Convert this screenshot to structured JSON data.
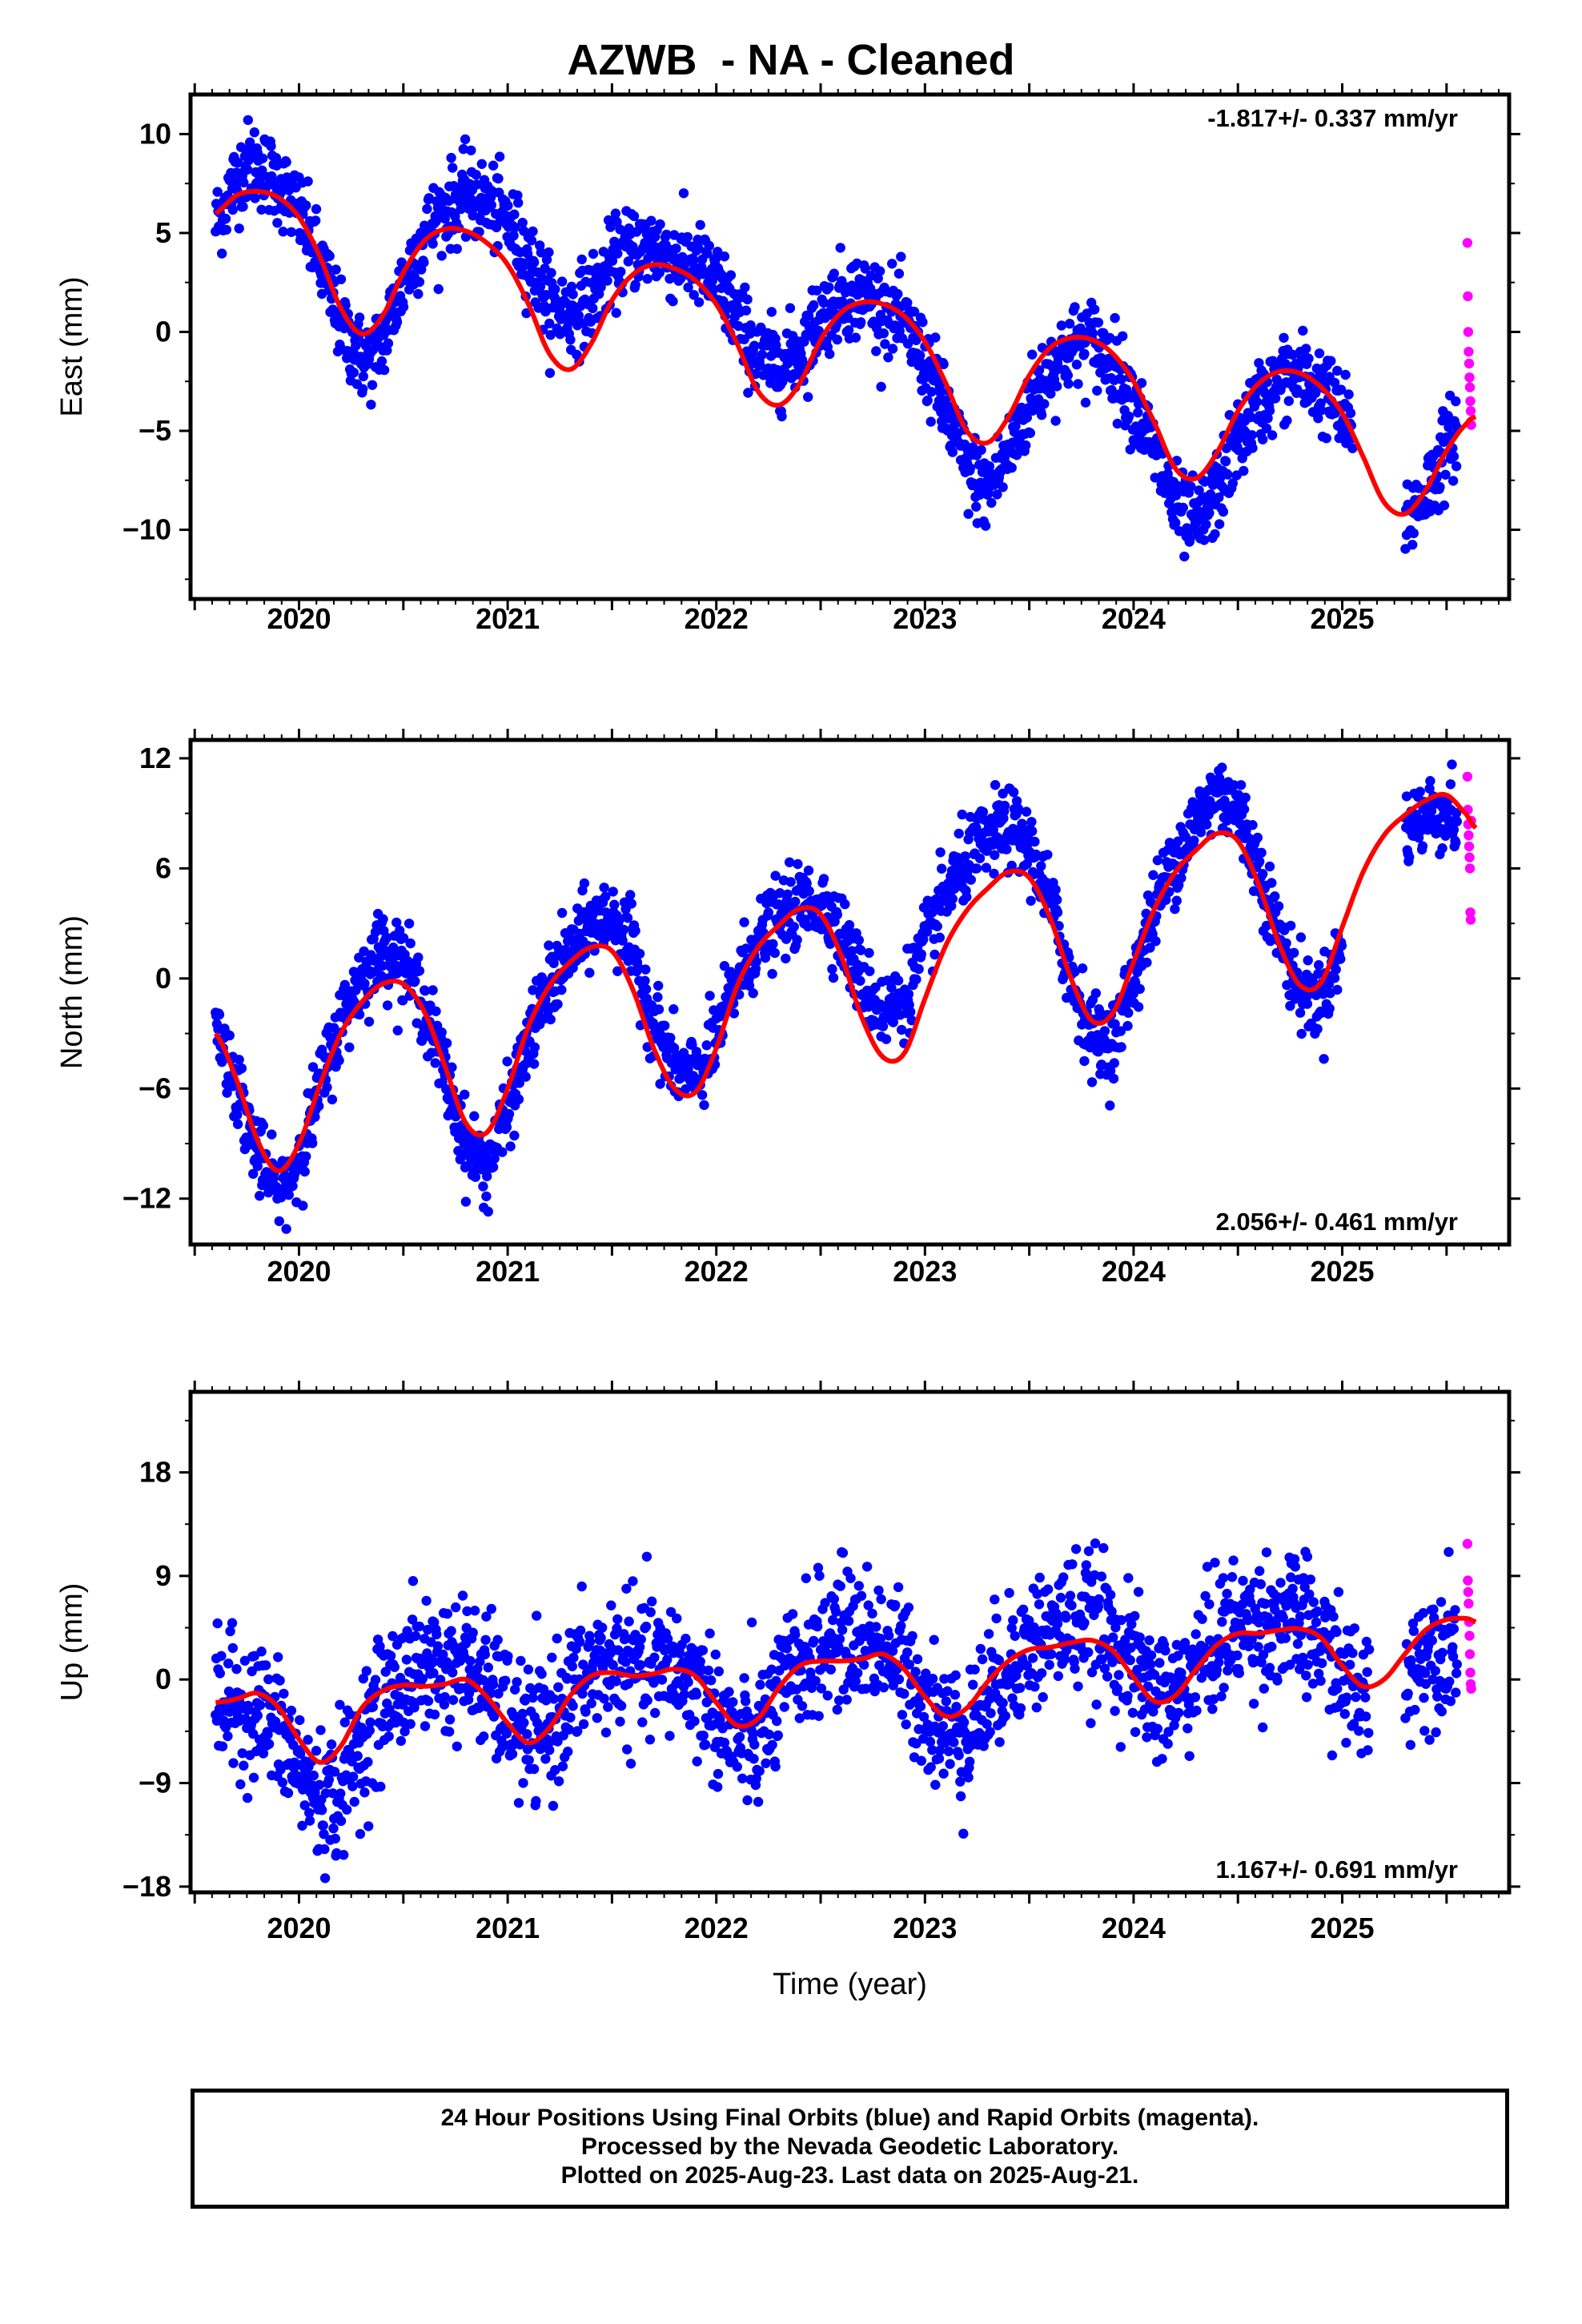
{
  "title": "AZWB  - NA - Cleaned",
  "colors": {
    "final": "#0000ff",
    "rapid": "#ff00ff",
    "model": "#ff0000",
    "frame": "#000000"
  },
  "footer": {
    "line1": "24 Hour Positions Using Final Orbits (blue) and Rapid Orbits (magenta).",
    "line2": "Processed by the Nevada Geodetic Laboratory.",
    "line3": "Plotted on 2025-Aug-23. Last data on 2025-Aug-21."
  },
  "chart_data": [
    {
      "type": "scatter",
      "component": "east",
      "ylabel": "East (mm)",
      "xlabel": "",
      "rate_label": "-1.817+/- 0.337 mm/yr",
      "rate_position": "top-right",
      "xlim": [
        2019.48,
        2025.8
      ],
      "ylim": [
        -13.5,
        12.0
      ],
      "yticks": [
        -10,
        -5,
        0,
        5,
        10
      ],
      "ytick_labels": [
        "−10",
        "−5",
        "0",
        "5",
        "10"
      ],
      "xticks": [
        2020,
        2021,
        2022,
        2023,
        2024,
        2025
      ],
      "xtick_labels": [
        "2020",
        "2021",
        "2022",
        "2023",
        "2024",
        "2025"
      ],
      "model_curve": {
        "x": [
          2019.6,
          2019.7,
          2019.8,
          2019.9,
          2020.0,
          2020.1,
          2020.2,
          2020.3,
          2020.4,
          2020.5,
          2020.6,
          2020.7,
          2020.8,
          2020.9,
          2021.0,
          2021.1,
          2021.2,
          2021.3,
          2021.4,
          2021.5,
          2021.6,
          2021.7,
          2021.8,
          2021.9,
          2022.0,
          2022.1,
          2022.2,
          2022.3,
          2022.4,
          2022.5,
          2022.6,
          2022.7,
          2022.8,
          2022.9,
          2023.0,
          2023.1,
          2023.2,
          2023.3,
          2023.4,
          2023.5,
          2023.6,
          2023.7,
          2023.8,
          2023.9,
          2024.0,
          2024.1,
          2024.2,
          2024.3,
          2024.4,
          2024.5,
          2024.6,
          2024.7,
          2024.8,
          2024.9,
          2025.0,
          2025.1,
          2025.2,
          2025.3,
          2025.4,
          2025.5,
          2025.6,
          2025.64
        ],
        "y": [
          6.0,
          6.9,
          7.1,
          6.8,
          5.8,
          3.8,
          1.2,
          -0.1,
          0.8,
          3.0,
          4.6,
          5.2,
          5.1,
          4.5,
          3.4,
          1.4,
          -1.1,
          -1.9,
          -0.6,
          1.6,
          2.9,
          3.4,
          3.2,
          2.6,
          1.4,
          -0.6,
          -3.0,
          -3.7,
          -2.6,
          -0.4,
          1.0,
          1.5,
          1.4,
          0.8,
          -0.5,
          -2.6,
          -5.0,
          -5.6,
          -4.3,
          -2.2,
          -0.8,
          -0.3,
          -0.4,
          -1.1,
          -2.5,
          -4.6,
          -6.9,
          -7.4,
          -6.1,
          -4.0,
          -2.6,
          -2.0,
          -2.1,
          -2.8,
          -4.1,
          -6.3,
          -8.6,
          -9.2,
          -8.0,
          -6.0,
          -4.6,
          -4.3
        ]
      },
      "final_points": {
        "x": [
          2019.6,
          2025.55
        ],
        "y": [
          5.2,
          -7.0
        ],
        "count": 1950
      },
      "rapid_points": {
        "x": [
          2025.6,
          2025.602,
          2025.604,
          2025.606,
          2025.608,
          2025.61,
          2025.612,
          2025.614,
          2025.616,
          2025.618
        ],
        "y": [
          4.5,
          1.8,
          0.0,
          -1.0,
          -1.6,
          -2.3,
          -2.8,
          -3.5,
          -4.0,
          -4.7
        ]
      }
    },
    {
      "type": "scatter",
      "component": "north",
      "ylabel": "North (mm)",
      "xlabel": "",
      "rate_label": "2.056+/- 0.461 mm/yr",
      "rate_position": "bottom-right",
      "xlim": [
        2019.48,
        2025.8
      ],
      "ylim": [
        -14.5,
        13.0
      ],
      "yticks": [
        -12,
        -6,
        0,
        6,
        12
      ],
      "ytick_labels": [
        "−12",
        "−6",
        "0",
        "6",
        "12"
      ],
      "xticks": [
        2020,
        2021,
        2022,
        2023,
        2024,
        2025
      ],
      "xtick_labels": [
        "2020",
        "2021",
        "2022",
        "2023",
        "2024",
        "2025"
      ],
      "model_curve": {
        "x": [
          2019.6,
          2019.7,
          2019.8,
          2019.9,
          2020.0,
          2020.1,
          2020.2,
          2020.3,
          2020.4,
          2020.5,
          2020.6,
          2020.7,
          2020.8,
          2020.9,
          2021.0,
          2021.1,
          2021.2,
          2021.3,
          2021.4,
          2021.5,
          2021.6,
          2021.7,
          2021.8,
          2021.9,
          2022.0,
          2022.1,
          2022.2,
          2022.3,
          2022.4,
          2022.5,
          2022.6,
          2022.7,
          2022.8,
          2022.9,
          2023.0,
          2023.1,
          2023.2,
          2023.3,
          2023.4,
          2023.5,
          2023.6,
          2023.7,
          2023.8,
          2023.9,
          2024.0,
          2024.1,
          2024.2,
          2024.3,
          2024.4,
          2024.5,
          2024.6,
          2024.7,
          2024.8,
          2024.9,
          2025.0,
          2025.1,
          2025.2,
          2025.3,
          2025.4,
          2025.5,
          2025.6,
          2025.64
        ],
        "y": [
          -3.0,
          -5.5,
          -8.8,
          -10.5,
          -9.0,
          -5.8,
          -3.0,
          -1.3,
          -0.3,
          -0.3,
          -1.8,
          -4.8,
          -7.9,
          -8.4,
          -6.0,
          -2.6,
          -0.4,
          0.9,
          1.7,
          1.5,
          -0.6,
          -3.8,
          -6.0,
          -6.2,
          -3.8,
          -0.4,
          1.7,
          2.9,
          3.8,
          3.5,
          1.2,
          -2.2,
          -4.3,
          -4.1,
          -1.1,
          1.8,
          3.7,
          4.9,
          5.8,
          5.5,
          3.3,
          0.0,
          -2.3,
          -1.9,
          0.9,
          3.8,
          5.8,
          7.0,
          7.9,
          7.5,
          5.1,
          1.8,
          -0.4,
          -0.2,
          2.8,
          5.8,
          7.8,
          8.9,
          9.7,
          10.0,
          8.9,
          8.2
        ]
      },
      "final_points": {
        "x": [
          2019.6,
          2025.55
        ],
        "y": [
          -3.0,
          8.0
        ],
        "count": 1950
      },
      "rapid_points": {
        "x": [
          2025.6,
          2025.602,
          2025.604,
          2025.606,
          2025.608,
          2025.61,
          2025.612,
          2025.614,
          2025.616,
          2025.618
        ],
        "y": [
          11.0,
          9.2,
          8.4,
          7.8,
          7.2,
          6.6,
          6.0,
          3.6,
          3.2,
          8.6
        ]
      }
    },
    {
      "type": "scatter",
      "component": "up",
      "ylabel": "Up (mm)",
      "xlabel": "Time (year)",
      "rate_label": "1.167+/- 0.691 mm/yr",
      "rate_position": "bottom-right",
      "xlim": [
        2019.48,
        2025.8
      ],
      "ylim": [
        -18.5,
        25.0
      ],
      "yticks": [
        -18,
        -9,
        0,
        9,
        18
      ],
      "ytick_labels": [
        "−18",
        "−9",
        "0",
        "9",
        "18"
      ],
      "xticks": [
        2020,
        2021,
        2022,
        2023,
        2024,
        2025
      ],
      "xtick_labels": [
        "2020",
        "2021",
        "2022",
        "2023",
        "2024",
        "2025"
      ],
      "model_curve": {
        "x": [
          2019.6,
          2019.7,
          2019.8,
          2019.9,
          2020.0,
          2020.1,
          2020.2,
          2020.3,
          2020.4,
          2020.5,
          2020.6,
          2020.7,
          2020.8,
          2020.9,
          2021.0,
          2021.1,
          2021.2,
          2021.3,
          2021.4,
          2021.5,
          2021.6,
          2021.7,
          2021.8,
          2021.9,
          2022.0,
          2022.1,
          2022.2,
          2022.3,
          2022.4,
          2022.5,
          2022.6,
          2022.7,
          2022.8,
          2022.9,
          2023.0,
          2023.1,
          2023.2,
          2023.3,
          2023.4,
          2023.5,
          2023.6,
          2023.7,
          2023.8,
          2023.9,
          2024.0,
          2024.1,
          2024.2,
          2024.3,
          2024.4,
          2024.5,
          2024.6,
          2024.7,
          2024.8,
          2024.9,
          2025.0,
          2025.1,
          2025.2,
          2025.3,
          2025.4,
          2025.5,
          2025.6,
          2025.64
        ],
        "y": [
          -2.0,
          -1.7,
          -1.2,
          -2.4,
          -5.2,
          -7.2,
          -5.8,
          -2.5,
          -1.0,
          -0.5,
          -0.6,
          -0.4,
          0.0,
          -1.5,
          -3.8,
          -5.5,
          -4.2,
          -1.4,
          0.3,
          0.6,
          0.3,
          0.5,
          0.9,
          0.3,
          -2.0,
          -4.0,
          -3.4,
          -0.7,
          1.2,
          1.6,
          1.6,
          1.8,
          2.2,
          0.9,
          -1.5,
          -3.2,
          -2.5,
          -0.2,
          1.6,
          2.6,
          2.8,
          3.2,
          3.4,
          2.5,
          0.2,
          -1.9,
          -1.4,
          0.9,
          3.0,
          4.0,
          4.0,
          4.3,
          4.4,
          3.6,
          1.2,
          -0.6,
          0.0,
          2.2,
          4.3,
          5.2,
          5.3,
          5.0
        ]
      },
      "final_points": {
        "x": [
          2019.6,
          2025.55
        ],
        "y": [
          -2.0,
          4.0
        ],
        "count": 1950
      },
      "rapid_points": {
        "x": [
          2025.6,
          2025.602,
          2025.604,
          2025.606,
          2025.608,
          2025.61,
          2025.612,
          2025.614,
          2025.616,
          2025.618
        ],
        "y": [
          11.8,
          8.6,
          7.6,
          6.6,
          5.0,
          3.8,
          2.2,
          0.6,
          -0.4,
          -0.8
        ]
      }
    }
  ]
}
